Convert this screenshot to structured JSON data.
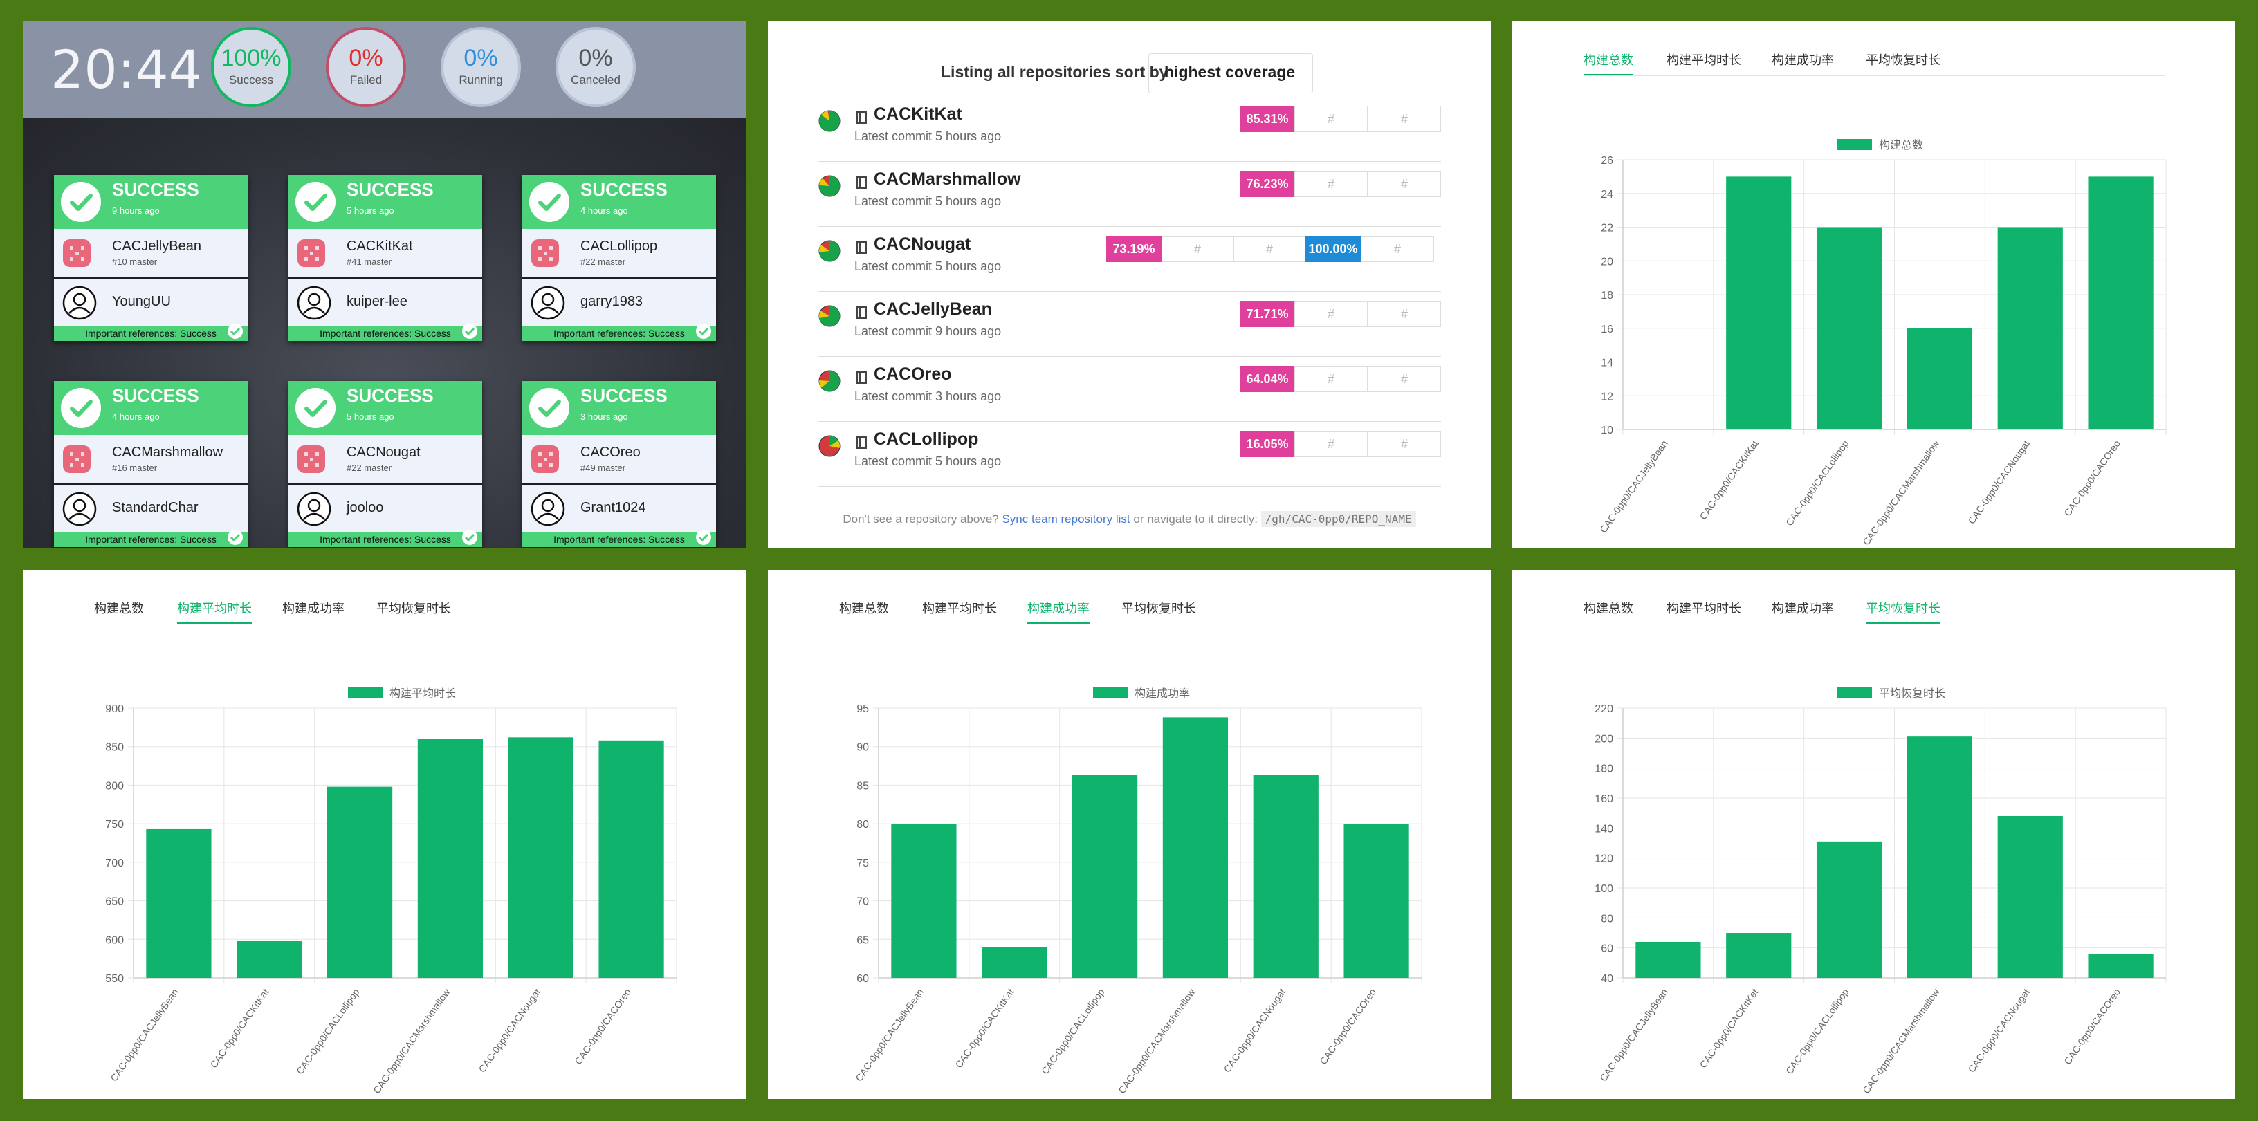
{
  "dashboard": {
    "time": "20:44",
    "stats": [
      {
        "pct": "100%",
        "label": "Success",
        "color": "#12b860",
        "ring": "#12b860"
      },
      {
        "pct": "0%",
        "label": "Failed",
        "color": "#e03030",
        "ring": "#c0506a"
      },
      {
        "pct": "0%",
        "label": "Running",
        "color": "#2f8fd8",
        "ring": "#b8c4d6"
      },
      {
        "pct": "0%",
        "label": "Canceled",
        "color": "#555555",
        "ring": "#b8c4d6"
      }
    ],
    "cards": [
      {
        "status": "SUCCESS",
        "ago": "9 hours ago",
        "repo": "CACJellyBean",
        "branch": "#10 master",
        "user": "YoungUU",
        "ref": "Important references: Success"
      },
      {
        "status": "SUCCESS",
        "ago": "5 hours ago",
        "repo": "CACKitKat",
        "branch": "#41 master",
        "user": "kuiper-lee",
        "ref": "Important references: Success"
      },
      {
        "status": "SUCCESS",
        "ago": "4 hours ago",
        "repo": "CACLollipop",
        "branch": "#22 master",
        "user": "garry1983",
        "ref": "Important references: Success"
      },
      {
        "status": "SUCCESS",
        "ago": "4 hours ago",
        "repo": "CACMarshmallow",
        "branch": "#16 master",
        "user": "StandardChar",
        "ref": "Important references: Success"
      },
      {
        "status": "SUCCESS",
        "ago": "5 hours ago",
        "repo": "CACNougat",
        "branch": "#22 master",
        "user": "jooloo",
        "ref": "Important references: Success"
      },
      {
        "status": "SUCCESS",
        "ago": "3 hours ago",
        "repo": "CACOreo",
        "branch": "#49 master",
        "user": "Grant1024",
        "ref": "Important references: Success"
      }
    ]
  },
  "repos": {
    "listing": "Listing all repositories sort by",
    "sort": "highest coverage",
    "rows": [
      {
        "name": "CACKitKat",
        "commit": "Latest commit 5 hours ago",
        "coverage": "85.31%",
        "cells": [
          "#",
          "#"
        ]
      },
      {
        "name": "CACMarshmallow",
        "commit": "Latest commit 5 hours ago",
        "coverage": "76.23%",
        "cells": [
          "#",
          "#"
        ]
      },
      {
        "name": "CACNougat",
        "commit": "Latest commit 5 hours ago",
        "coverage": "73.19%",
        "cells": [
          "#",
          "#"
        ],
        "extra": "100.00%",
        "extra_cell": "#"
      },
      {
        "name": "CACJellyBean",
        "commit": "Latest commit 9 hours ago",
        "coverage": "71.71%",
        "cells": [
          "#",
          "#"
        ]
      },
      {
        "name": "CACOreo",
        "commit": "Latest commit 3 hours ago",
        "coverage": "64.04%",
        "cells": [
          "#",
          "#"
        ]
      },
      {
        "name": "CACLollipop",
        "commit": "Latest commit 5 hours ago",
        "coverage": "16.05%",
        "cells": [
          "#",
          "#"
        ]
      }
    ],
    "footer_text": "Don't see a repository above?",
    "footer_link": "Sync team repository list",
    "footer_mid": "or navigate to it directly:",
    "footer_code": "/gh/CAC-0pp0/REPO_NAME"
  },
  "tabs": [
    "构建总数",
    "构建平均时长",
    "构建成功率",
    "平均恢复时长"
  ],
  "chart_color": "#0fb36c",
  "chart_data": [
    {
      "type": "bar",
      "legend": "构建总数",
      "active_tab": 0,
      "categories": [
        "CAC-0pp0/CACJellyBean",
        "CAC-0pp0/CACKitKat",
        "CAC-0pp0/CACLollipop",
        "CAC-0pp0/CACMarshmallow",
        "CAC-0pp0/CACNougat",
        "CAC-0pp0/CACOreo"
      ],
      "values": [
        10,
        25,
        22,
        16,
        22,
        25
      ],
      "ylim": [
        10,
        26
      ],
      "yticks": [
        10,
        12,
        14,
        16,
        18,
        20,
        22,
        24,
        26
      ]
    },
    {
      "type": "bar",
      "legend": "构建平均时长",
      "active_tab": 1,
      "categories": [
        "CAC-0pp0/CACJellyBean",
        "CAC-0pp0/CACKitKat",
        "CAC-0pp0/CACLollipop",
        "CAC-0pp0/CACMarshmallow",
        "CAC-0pp0/CACNougat",
        "CAC-0pp0/CACOreo"
      ],
      "values": [
        743,
        598,
        798,
        860,
        862,
        858
      ],
      "ylim": [
        550,
        900
      ],
      "yticks": [
        550,
        600,
        650,
        700,
        750,
        800,
        850,
        900
      ]
    },
    {
      "type": "bar",
      "legend": "构建成功率",
      "active_tab": 2,
      "categories": [
        "CAC-0pp0/CACJellyBean",
        "CAC-0pp0/CACKitKat",
        "CAC-0pp0/CACLollipop",
        "CAC-0pp0/CACMarshmallow",
        "CAC-0pp0/CACNougat",
        "CAC-0pp0/CACOreo"
      ],
      "values": [
        80,
        64,
        86.3,
        93.8,
        86.3,
        80
      ],
      "ylim": [
        60,
        95
      ],
      "yticks": [
        60,
        65,
        70,
        75,
        80,
        85,
        90,
        95
      ]
    },
    {
      "type": "bar",
      "legend": "平均恢复时长",
      "active_tab": 3,
      "categories": [
        "CAC-0pp0/CACJellyBean",
        "CAC-0pp0/CACKitKat",
        "CAC-0pp0/CACLollipop",
        "CAC-0pp0/CACMarshmallow",
        "CAC-0pp0/CACNougat",
        "CAC-0pp0/CACOreo"
      ],
      "values": [
        64,
        70,
        131,
        201,
        148,
        56
      ],
      "ylim": [
        40,
        220
      ],
      "yticks": [
        40,
        60,
        80,
        100,
        120,
        140,
        160,
        180,
        200,
        220
      ]
    }
  ]
}
